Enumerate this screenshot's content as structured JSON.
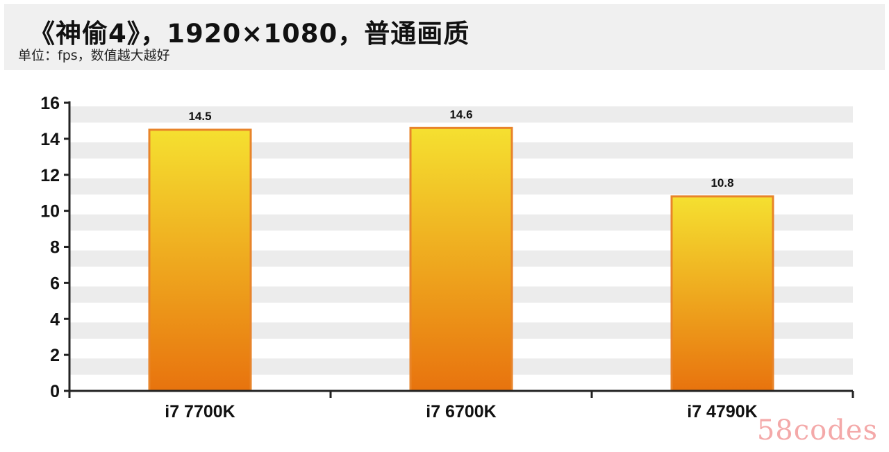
{
  "header": {
    "title": "《神偷4》，1920×1080，普通画质",
    "subtitle": "单位：fps，数值越大越好"
  },
  "watermark": "58codes",
  "colors": {
    "bar_top": "#f5e030",
    "bar_bottom": "#e8730e",
    "bar_border": "#e8842a",
    "band": "#ececec",
    "axis": "#222222"
  },
  "chart_data": {
    "type": "bar",
    "categories": [
      "i7 7700K",
      "i7 6700K",
      "i7 4790K"
    ],
    "values": [
      14.5,
      14.6,
      10.8
    ],
    "data_labels": [
      "14.5",
      "14.6",
      "10.8"
    ],
    "title": "《神偷4》，1920×1080，普通画质",
    "subtitle": "单位：fps，数值越大越好",
    "xlabel": "",
    "ylabel": "",
    "ylim": [
      0,
      16
    ],
    "yticks": [
      0,
      2,
      4,
      6,
      8,
      10,
      12,
      14,
      16
    ],
    "grid": "alternating horizontal bands",
    "legend": "none"
  }
}
